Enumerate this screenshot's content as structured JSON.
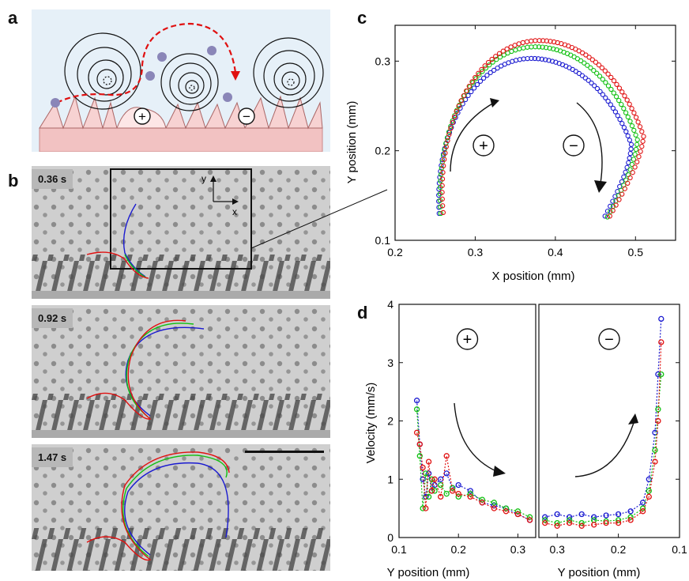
{
  "panel_labels": {
    "a": "a",
    "b": "b",
    "c": "c",
    "d": "d"
  },
  "panel_a": {
    "plus": "+",
    "minus": "−"
  },
  "panel_b": {
    "frames": [
      {
        "time": "0.36 s"
      },
      {
        "time": "0.92 s"
      },
      {
        "time": "1.47 s"
      }
    ],
    "axis_y": "y",
    "axis_x": "x"
  },
  "chart_data": [
    {
      "type": "scatter",
      "panel": "c",
      "xlabel": "X position (mm)",
      "ylabel": "Y position (mm)",
      "xlim": [
        0.2,
        0.55
      ],
      "ylim": [
        0.1,
        0.34
      ],
      "xticks": [
        0.2,
        0.3,
        0.4,
        0.5
      ],
      "yticks": [
        0.1,
        0.2,
        0.3
      ],
      "annotations": [
        "+",
        "−"
      ],
      "series": [
        {
          "color": "#1a1ad0",
          "peak": [
            0.37,
            0.303
          ],
          "left_end": [
            0.255,
            0.13
          ],
          "left_rx": 0.135,
          "right_end": [
            0.462,
            0.127
          ]
        },
        {
          "color": "#10c010",
          "peak": [
            0.375,
            0.316
          ],
          "left_end": [
            0.257,
            0.13
          ],
          "left_rx": 0.143,
          "right_end": [
            0.465,
            0.126
          ]
        },
        {
          "color": "#e01010",
          "peak": [
            0.38,
            0.323
          ],
          "left_end": [
            0.26,
            0.131
          ],
          "left_rx": 0.15,
          "right_end": [
            0.468,
            0.127
          ]
        }
      ]
    },
    {
      "type": "line",
      "panel": "d-left",
      "xlabel": "Y position (mm)",
      "ylabel": "Velocity (mm/s)",
      "xlim": [
        0.1,
        0.33
      ],
      "ylim": [
        0,
        4
      ],
      "xticks": [
        0.1,
        0.2,
        0.3
      ],
      "yticks": [
        0,
        1,
        2,
        3,
        4
      ],
      "annotation": "+",
      "series": [
        {
          "color": "#1a1ad0",
          "x": [
            0.13,
            0.135,
            0.14,
            0.145,
            0.15,
            0.155,
            0.16,
            0.17,
            0.18,
            0.19,
            0.2,
            0.22,
            0.24,
            0.26,
            0.28,
            0.3,
            0.32
          ],
          "y": [
            2.35,
            1.6,
            1.0,
            0.7,
            1.1,
            0.8,
            0.9,
            1.0,
            1.1,
            0.85,
            0.9,
            0.8,
            0.6,
            0.55,
            0.5,
            0.4,
            0.3
          ]
        },
        {
          "color": "#10c010",
          "x": [
            0.13,
            0.135,
            0.14,
            0.145,
            0.15,
            0.155,
            0.16,
            0.17,
            0.18,
            0.19,
            0.2,
            0.22,
            0.24,
            0.26,
            0.28,
            0.3,
            0.32
          ],
          "y": [
            2.2,
            1.4,
            0.5,
            1.1,
            0.7,
            1.0,
            0.8,
            0.9,
            0.75,
            0.85,
            0.7,
            0.75,
            0.65,
            0.6,
            0.5,
            0.45,
            0.35
          ]
        },
        {
          "color": "#e01010",
          "x": [
            0.13,
            0.135,
            0.14,
            0.145,
            0.15,
            0.155,
            0.16,
            0.17,
            0.18,
            0.19,
            0.2,
            0.22,
            0.24,
            0.26,
            0.28,
            0.3,
            0.32
          ],
          "y": [
            1.8,
            1.6,
            1.2,
            0.5,
            1.3,
            0.8,
            1.0,
            0.7,
            1.4,
            0.8,
            0.75,
            0.7,
            0.6,
            0.5,
            0.45,
            0.4,
            0.3
          ]
        }
      ]
    },
    {
      "type": "line",
      "panel": "d-right",
      "xlabel": "Y position (mm)",
      "xlim": [
        0.33,
        0.1
      ],
      "ylim": [
        0,
        4
      ],
      "xticks": [
        0.3,
        0.2,
        0.1
      ],
      "yticks": [
        0,
        1,
        2,
        3,
        4
      ],
      "annotation": "−",
      "series": [
        {
          "color": "#1a1ad0",
          "x": [
            0.32,
            0.3,
            0.28,
            0.26,
            0.24,
            0.22,
            0.2,
            0.18,
            0.16,
            0.15,
            0.14,
            0.135,
            0.13
          ],
          "y": [
            0.35,
            0.4,
            0.35,
            0.4,
            0.35,
            0.38,
            0.4,
            0.45,
            0.6,
            1.0,
            1.8,
            2.8,
            3.75
          ]
        },
        {
          "color": "#10c010",
          "x": [
            0.32,
            0.3,
            0.28,
            0.26,
            0.24,
            0.22,
            0.2,
            0.18,
            0.16,
            0.15,
            0.14,
            0.135,
            0.13
          ],
          "y": [
            0.3,
            0.25,
            0.3,
            0.25,
            0.3,
            0.28,
            0.3,
            0.35,
            0.5,
            0.8,
            1.5,
            2.2,
            2.8
          ]
        },
        {
          "color": "#e01010",
          "x": [
            0.32,
            0.3,
            0.28,
            0.26,
            0.24,
            0.22,
            0.2,
            0.18,
            0.16,
            0.15,
            0.14,
            0.135,
            0.13
          ],
          "y": [
            0.25,
            0.2,
            0.25,
            0.2,
            0.22,
            0.25,
            0.25,
            0.3,
            0.45,
            0.7,
            1.3,
            2.0,
            3.35
          ]
        }
      ]
    }
  ],
  "colors": {
    "blue": "#1a1ad0",
    "green": "#10c010",
    "red": "#e01010",
    "substrate": "#f0c0c0",
    "bg_a": "#e6f0f8"
  }
}
